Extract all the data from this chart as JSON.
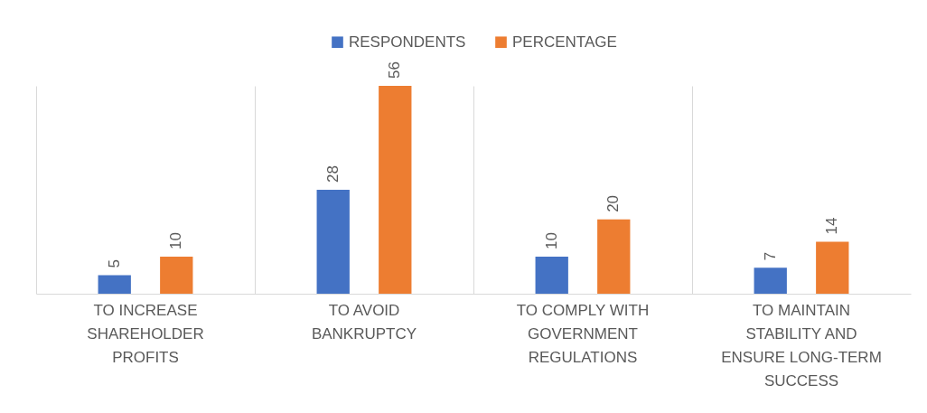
{
  "chart_data": {
    "type": "bar",
    "categories": [
      "TO INCREASE SHAREHOLDER PROFITS",
      "TO AVOID BANKRUPTCY",
      "TO COMPLY WITH GOVERNMENT REGULATIONS",
      "TO MAINTAIN STABILITY AND ENSURE LONG-TERM SUCCESS"
    ],
    "series": [
      {
        "name": "RESPONDENTS",
        "color": "#4472c4",
        "values": [
          5,
          28,
          10,
          7
        ]
      },
      {
        "name": "PERCENTAGE",
        "color": "#ed7d31",
        "values": [
          10,
          56,
          20,
          14
        ]
      }
    ],
    "data_labels": true,
    "grid": "x",
    "legend": "top"
  }
}
